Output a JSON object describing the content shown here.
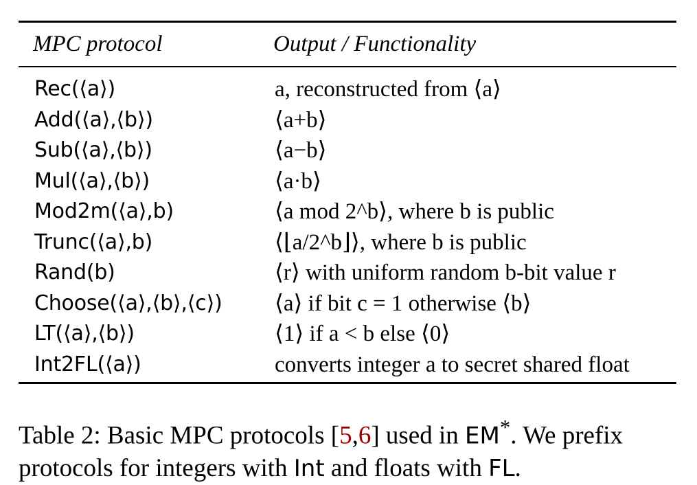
{
  "table": {
    "headers": [
      "MPC protocol",
      "Output / Functionality"
    ],
    "rows": [
      {
        "protocol": "Rec(⟨a⟩)",
        "output": "a, reconstructed from ⟨a⟩"
      },
      {
        "protocol": "Add(⟨a⟩,⟨b⟩)",
        "output": "⟨a+b⟩"
      },
      {
        "protocol": "Sub(⟨a⟩,⟨b⟩)",
        "output": "⟨a−b⟩"
      },
      {
        "protocol": "Mul(⟨a⟩,⟨b⟩)",
        "output": "⟨a·b⟩"
      },
      {
        "protocol": "Mod2m(⟨a⟩,b)",
        "output": "⟨a  mod 2^b⟩, where b is public"
      },
      {
        "protocol": "Trunc(⟨a⟩,b)",
        "output": "⟨⌊a/2^b⌋⟩, where b is public"
      },
      {
        "protocol": "Rand(b)",
        "output": "⟨r⟩ with uniform random b-bit value r"
      },
      {
        "protocol": "Choose(⟨a⟩,⟨b⟩,⟨c⟩)",
        "output": "⟨a⟩ if bit c = 1 otherwise ⟨b⟩"
      },
      {
        "protocol": "LT(⟨a⟩,⟨b⟩)",
        "output": "⟨1⟩ if a < b else ⟨0⟩"
      },
      {
        "protocol": "Int2FL(⟨a⟩)",
        "output": "converts integer a to secret shared float"
      }
    ]
  },
  "caption": {
    "prefix": "Table 2: Basic MPC protocols [",
    "cite1": "5",
    "sep": ",",
    "cite2": "6",
    "after_cite": "] used in ",
    "em": "EM",
    "star": "*",
    "mid": ". We prefix protocols for integers with ",
    "int": "Int",
    "and": " and floats with ",
    "fl": "FL",
    "end": "."
  }
}
